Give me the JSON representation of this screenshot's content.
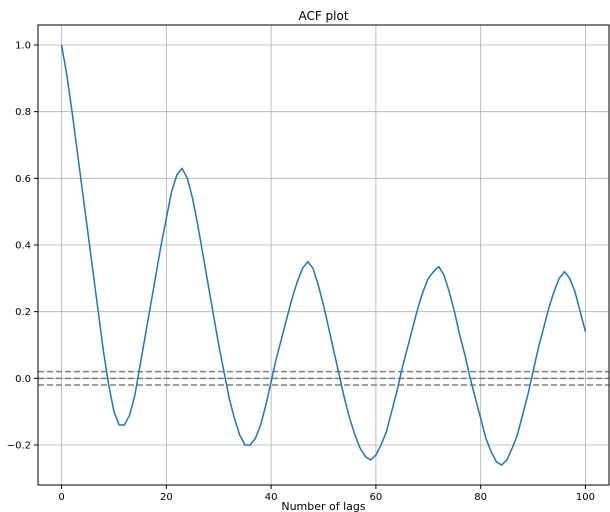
{
  "chart_data": {
    "type": "line",
    "title": "ACF plot",
    "xlabel": "Number of lags",
    "ylabel": "",
    "xlim": [
      -4.5,
      104.5
    ],
    "ylim": [
      -0.32,
      1.06
    ],
    "xticks": [
      0,
      20,
      40,
      60,
      80,
      100
    ],
    "xtick_labels": [
      "0",
      "20",
      "40",
      "60",
      "80",
      "100"
    ],
    "yticks": [
      -0.2,
      0.0,
      0.2,
      0.4,
      0.6,
      0.8,
      1.0
    ],
    "ytick_labels": [
      "−0.2",
      "0.0",
      "0.2",
      "0.4",
      "0.6",
      "0.8",
      "1.0"
    ],
    "grid": true,
    "series": [
      {
        "color": "#1f77b4",
        "x": [
          0,
          1,
          2,
          3,
          4,
          5,
          6,
          7,
          8,
          9,
          10,
          11,
          12,
          13,
          14,
          15,
          16,
          17,
          18,
          19,
          20,
          21,
          22,
          23,
          24,
          25,
          26,
          27,
          28,
          29,
          30,
          31,
          32,
          33,
          34,
          35,
          36,
          37,
          38,
          39,
          40,
          41,
          42,
          43,
          44,
          45,
          46,
          47,
          48,
          49,
          50,
          51,
          52,
          53,
          54,
          55,
          56,
          57,
          58,
          59,
          60,
          61,
          62,
          63,
          64,
          65,
          66,
          67,
          68,
          69,
          70,
          71,
          72,
          73,
          74,
          75,
          76,
          77,
          78,
          79,
          80,
          81,
          82,
          83,
          84,
          85,
          86,
          87,
          88,
          89,
          90,
          91,
          92,
          93,
          94,
          95,
          96,
          97,
          98,
          99,
          100
        ],
        "values": [
          1.0,
          0.91,
          0.8,
          0.68,
          0.56,
          0.44,
          0.32,
          0.2,
          0.08,
          -0.02,
          -0.1,
          -0.14,
          -0.14,
          -0.11,
          -0.05,
          0.04,
          0.13,
          0.22,
          0.31,
          0.4,
          0.48,
          0.56,
          0.61,
          0.63,
          0.6,
          0.54,
          0.46,
          0.37,
          0.28,
          0.19,
          0.1,
          0.02,
          -0.06,
          -0.12,
          -0.17,
          -0.2,
          -0.2,
          -0.18,
          -0.14,
          -0.08,
          -0.01,
          0.06,
          0.12,
          0.18,
          0.24,
          0.29,
          0.33,
          0.35,
          0.33,
          0.28,
          0.22,
          0.15,
          0.08,
          0.01,
          -0.06,
          -0.12,
          -0.17,
          -0.21,
          -0.235,
          -0.245,
          -0.23,
          -0.2,
          -0.16,
          -0.1,
          -0.04,
          0.03,
          0.09,
          0.15,
          0.21,
          0.26,
          0.3,
          0.32,
          0.335,
          0.31,
          0.26,
          0.2,
          0.13,
          0.07,
          0.0,
          -0.06,
          -0.12,
          -0.18,
          -0.22,
          -0.25,
          -0.26,
          -0.245,
          -0.21,
          -0.17,
          -0.11,
          -0.05,
          0.02,
          0.09,
          0.15,
          0.21,
          0.26,
          0.3,
          0.32,
          0.3,
          0.26,
          0.2,
          0.14
        ]
      }
    ],
    "reference_lines": [
      {
        "y": 0.0,
        "style": "dashed",
        "color": "#808080"
      },
      {
        "y": 0.02,
        "style": "dashed",
        "color": "#808080"
      },
      {
        "y": -0.02,
        "style": "dashed",
        "color": "#808080"
      }
    ]
  }
}
